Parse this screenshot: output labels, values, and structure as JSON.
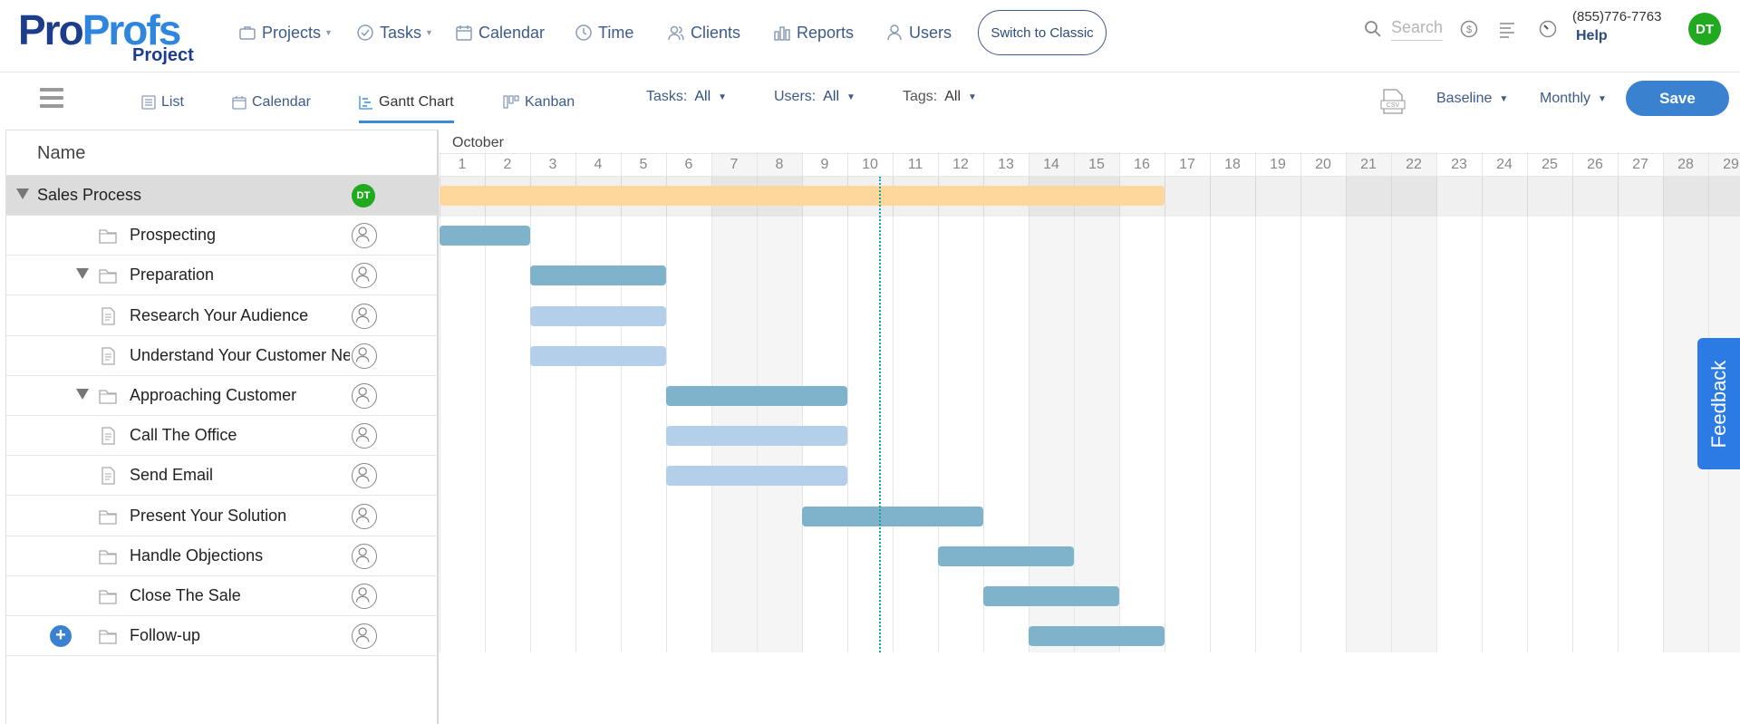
{
  "brand": {
    "logo_part1": "Pro",
    "logo_part2": "Profs",
    "logo_sub": "Project"
  },
  "topnav": {
    "items": [
      {
        "label": "Projects",
        "icon": "briefcase-icon",
        "caret": true
      },
      {
        "label": "Tasks",
        "icon": "check-circle-icon",
        "caret": true
      },
      {
        "label": "Calendar",
        "icon": "calendar-icon",
        "caret": false
      },
      {
        "label": "Time",
        "icon": "clock-icon",
        "caret": false
      },
      {
        "label": "Clients",
        "icon": "clients-icon",
        "caret": false
      },
      {
        "label": "Reports",
        "icon": "bar-chart-icon",
        "caret": false
      },
      {
        "label": "Users",
        "icon": "user-icon",
        "caret": false
      }
    ],
    "switch_label": "Switch to Classic",
    "search_placeholder": "Search",
    "phone": "(855)776-7763",
    "help_label": "Help",
    "avatar_initials": "DT"
  },
  "viewbar": {
    "tabs": [
      {
        "label": "List",
        "icon": "list-icon"
      },
      {
        "label": "Calendar",
        "icon": "calendar-icon"
      },
      {
        "label": "Gantt Chart",
        "icon": "gantt-icon",
        "active": true
      },
      {
        "label": "Kanban",
        "icon": "kanban-icon"
      }
    ],
    "filters": {
      "tasks_label": "Tasks:",
      "tasks_value": "All",
      "users_label": "Users:",
      "users_value": "All",
      "tags_label": "Tags:",
      "tags_value": "All"
    },
    "baseline_label": "Baseline",
    "monthly_label": "Monthly",
    "save_label": "Save"
  },
  "grid": {
    "name_header": "Name",
    "month_label": "October",
    "days": [
      "1",
      "2",
      "3",
      "4",
      "5",
      "6",
      "7",
      "8",
      "9",
      "10",
      "11",
      "12",
      "13",
      "14",
      "15",
      "16",
      "17",
      "18",
      "19",
      "20",
      "21",
      "22",
      "23",
      "24",
      "25",
      "26",
      "27",
      "28",
      "29"
    ],
    "weekend_days": [
      7,
      8,
      14,
      15,
      21,
      22,
      28,
      29
    ],
    "today_day": 10.2
  },
  "rows": [
    {
      "label": "Sales Process",
      "kind": "parent",
      "assignee": "DT",
      "start_day": 1,
      "end_day": 16
    },
    {
      "label": "Prospecting",
      "kind": "folder",
      "start_day": 1,
      "end_day": 2
    },
    {
      "label": "Preparation",
      "kind": "folder",
      "collapsible": true,
      "start_day": 3,
      "end_day": 5
    },
    {
      "label": "Research Your Audience",
      "kind": "doc",
      "start_day": 3,
      "end_day": 5
    },
    {
      "label": "Understand Your Customer Needs",
      "kind": "doc",
      "start_day": 3,
      "end_day": 5
    },
    {
      "label": "Approaching Customer",
      "kind": "folder",
      "collapsible": true,
      "start_day": 6,
      "end_day": 9
    },
    {
      "label": "Call The Office",
      "kind": "doc",
      "start_day": 6,
      "end_day": 9
    },
    {
      "label": "Send Email",
      "kind": "doc",
      "start_day": 6,
      "end_day": 9
    },
    {
      "label": "Present Your Solution",
      "kind": "folder",
      "start_day": 9,
      "end_day": 12
    },
    {
      "label": "Handle Objections",
      "kind": "folder",
      "start_day": 12,
      "end_day": 14
    },
    {
      "label": "Close The Sale",
      "kind": "folder",
      "start_day": 13,
      "end_day": 15
    },
    {
      "label": "Follow-up",
      "kind": "folder",
      "add_button": true,
      "start_day": 14,
      "end_day": 16
    }
  ],
  "feedback_label": "Feedback",
  "colors": {
    "summary_bar": "#fdd79b",
    "group_bar": "#7fb3cc",
    "task_bar": "#b4cfe9",
    "today_line": "#17a398",
    "accent": "#3a81d0"
  }
}
